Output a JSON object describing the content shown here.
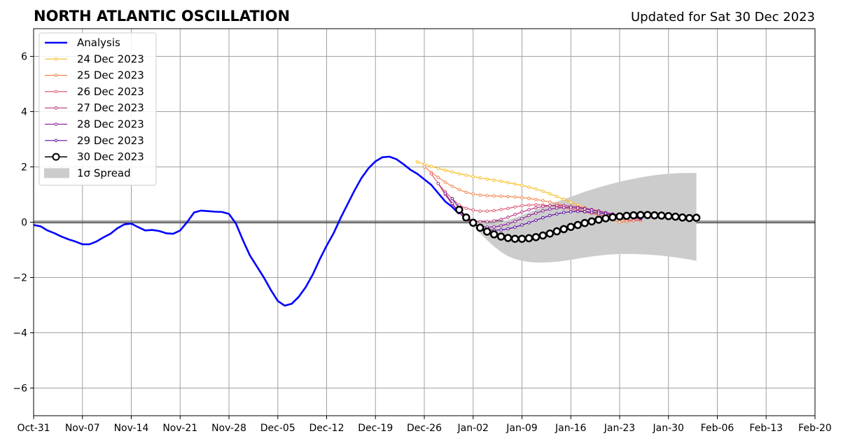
{
  "chart_data": {
    "type": "line",
    "title": "NORTH ATLANTIC OSCILLATION",
    "subtitle": "Updated for Sat 30 Dec 2023",
    "xlabel": "",
    "ylabel": "",
    "xlim": [
      "2023-10-31",
      "2024-02-20"
    ],
    "ylim": [
      -7,
      7
    ],
    "x_ticks": [
      "Oct-31",
      "Nov-07",
      "Nov-14",
      "Nov-21",
      "Nov-28",
      "Dec-05",
      "Dec-12",
      "Dec-19",
      "Dec-26",
      "Jan-02",
      "Jan-09",
      "Jan-16",
      "Jan-23",
      "Jan-30",
      "Feb-06",
      "Feb-13",
      "Feb-20"
    ],
    "y_ticks": [
      -6,
      -4,
      -2,
      0,
      2,
      4,
      6
    ],
    "y_tick_labels": [
      "−6",
      "−4",
      "−2",
      "0",
      "2",
      "4",
      "6"
    ],
    "grid": true,
    "legend_position": "top-left",
    "zero_line": 0,
    "analysis": {
      "name": "Analysis",
      "color": "#0000ff",
      "start": "2023-10-31",
      "values": [
        -0.1,
        -0.15,
        -0.3,
        -0.4,
        -0.52,
        -0.62,
        -0.7,
        -0.8,
        -0.8,
        -0.7,
        -0.55,
        -0.42,
        -0.22,
        -0.08,
        -0.05,
        -0.18,
        -0.3,
        -0.28,
        -0.32,
        -0.4,
        -0.42,
        -0.3,
        0.0,
        0.35,
        0.42,
        0.4,
        0.38,
        0.37,
        0.3,
        -0.05,
        -0.65,
        -1.2,
        -1.6,
        -2.0,
        -2.45,
        -2.85,
        -3.02,
        -2.95,
        -2.7,
        -2.35,
        -1.9,
        -1.35,
        -0.85,
        -0.4,
        0.15,
        0.65,
        1.15,
        1.6,
        1.95,
        2.2,
        2.35,
        2.37,
        2.28,
        2.1,
        1.9,
        1.75,
        1.55,
        1.35,
        1.05,
        0.75,
        0.55,
        0.3
      ]
    },
    "forecasts": [
      {
        "name": "24 Dec 2023",
        "color": "#f7bd1e",
        "start": "2023-12-25",
        "values": [
          2.18,
          2.1,
          2.02,
          1.95,
          1.88,
          1.82,
          1.75,
          1.7,
          1.65,
          1.6,
          1.56,
          1.52,
          1.48,
          1.43,
          1.38,
          1.33,
          1.27,
          1.2,
          1.12,
          1.03,
          0.93,
          0.83,
          0.72,
          0.62,
          0.52,
          0.43,
          0.35,
          0.27,
          0.2,
          0.12,
          0.05,
          0.08,
          0.05
        ]
      },
      {
        "name": "25 Dec 2023",
        "color": "#f3844f",
        "start": "2023-12-26",
        "values": [
          2.0,
          1.8,
          1.62,
          1.45,
          1.3,
          1.18,
          1.08,
          1.02,
          0.98,
          0.96,
          0.95,
          0.94,
          0.93,
          0.91,
          0.89,
          0.86,
          0.82,
          0.78,
          0.73,
          0.67,
          0.61,
          0.54,
          0.47,
          0.4,
          0.33,
          0.25,
          0.18,
          0.1,
          0.0,
          0.02,
          0.06,
          0.1
        ]
      },
      {
        "name": "26 Dec 2023",
        "color": "#de5a6e",
        "start": "2023-12-27",
        "values": [
          1.75,
          1.4,
          1.1,
          0.85,
          0.62,
          0.5,
          0.44,
          0.4,
          0.4,
          0.42,
          0.46,
          0.5,
          0.55,
          0.6,
          0.62,
          0.63,
          0.62,
          0.6,
          0.57,
          0.52,
          0.47,
          0.42,
          0.37,
          0.32,
          0.27,
          0.22,
          0.17,
          0.12,
          0.08,
          0.06,
          0.08
        ]
      },
      {
        "name": "27 Dec 2023",
        "color": "#b5377f",
        "start": "2023-12-28",
        "values": [
          1.4,
          1.0,
          0.65,
          0.35,
          0.15,
          0.05,
          0.02,
          0.02,
          0.05,
          0.1,
          0.18,
          0.28,
          0.37,
          0.45,
          0.52,
          0.57,
          0.6,
          0.61,
          0.6,
          0.58,
          0.55,
          0.51,
          0.46,
          0.41,
          0.35,
          0.3,
          0.25,
          0.2,
          0.15,
          0.12
        ]
      },
      {
        "name": "28 Dec 2023",
        "color": "#8a2597",
        "start": "2023-12-29",
        "values": [
          1.05,
          0.68,
          0.35,
          0.08,
          -0.08,
          -0.15,
          -0.18,
          -0.17,
          -0.13,
          -0.06,
          0.03,
          0.13,
          0.24,
          0.33,
          0.41,
          0.47,
          0.51,
          0.53,
          0.53,
          0.51,
          0.48,
          0.44,
          0.39,
          0.34,
          0.29,
          0.24,
          0.2,
          0.16,
          0.14
        ]
      },
      {
        "name": "29 Dec 2023",
        "color": "#5b0fa3",
        "start": "2023-12-30",
        "values": [
          0.85,
          0.5,
          0.2,
          -0.05,
          -0.2,
          -0.27,
          -0.29,
          -0.28,
          -0.24,
          -0.18,
          -0.1,
          -0.02,
          0.07,
          0.16,
          0.24,
          0.3,
          0.35,
          0.38,
          0.39,
          0.38,
          0.36,
          0.33,
          0.3,
          0.26,
          0.23,
          0.2,
          0.17,
          0.15
        ]
      },
      {
        "name": "30 Dec 2023",
        "color": "#000000",
        "start": "2023-12-31",
        "values": [
          0.45,
          0.17,
          -0.02,
          -0.2,
          -0.34,
          -0.44,
          -0.52,
          -0.57,
          -0.6,
          -0.6,
          -0.58,
          -0.54,
          -0.48,
          -0.41,
          -0.33,
          -0.25,
          -0.17,
          -0.1,
          -0.03,
          0.03,
          0.09,
          0.14,
          0.18,
          0.21,
          0.23,
          0.25,
          0.26,
          0.26,
          0.25,
          0.24,
          0.22,
          0.2,
          0.17,
          0.15,
          0.16
        ]
      }
    ],
    "spread": {
      "name": "1σ Spread",
      "color": "#cccccc",
      "start": "2023-12-31",
      "upper": [
        0.45,
        0.22,
        0.08,
        0.0,
        -0.03,
        -0.02,
        0.02,
        0.08,
        0.16,
        0.25,
        0.35,
        0.45,
        0.55,
        0.65,
        0.74,
        0.83,
        0.92,
        1.01,
        1.1,
        1.18,
        1.26,
        1.33,
        1.4,
        1.46,
        1.52,
        1.57,
        1.62,
        1.66,
        1.7,
        1.73,
        1.75,
        1.77,
        1.78,
        1.78,
        1.78
      ],
      "lower": [
        0.45,
        0.1,
        -0.15,
        -0.4,
        -0.65,
        -0.88,
        -1.08,
        -1.23,
        -1.33,
        -1.4,
        -1.44,
        -1.46,
        -1.46,
        -1.45,
        -1.43,
        -1.4,
        -1.36,
        -1.32,
        -1.28,
        -1.24,
        -1.21,
        -1.18,
        -1.16,
        -1.15,
        -1.15,
        -1.15,
        -1.16,
        -1.17,
        -1.19,
        -1.21,
        -1.24,
        -1.27,
        -1.31,
        -1.35,
        -1.4
      ]
    },
    "legend": [
      "Analysis",
      "24 Dec 2023",
      "25 Dec 2023",
      "26 Dec 2023",
      "27 Dec 2023",
      "28 Dec 2023",
      "29 Dec 2023",
      "30 Dec 2023",
      "1σ Spread"
    ]
  }
}
